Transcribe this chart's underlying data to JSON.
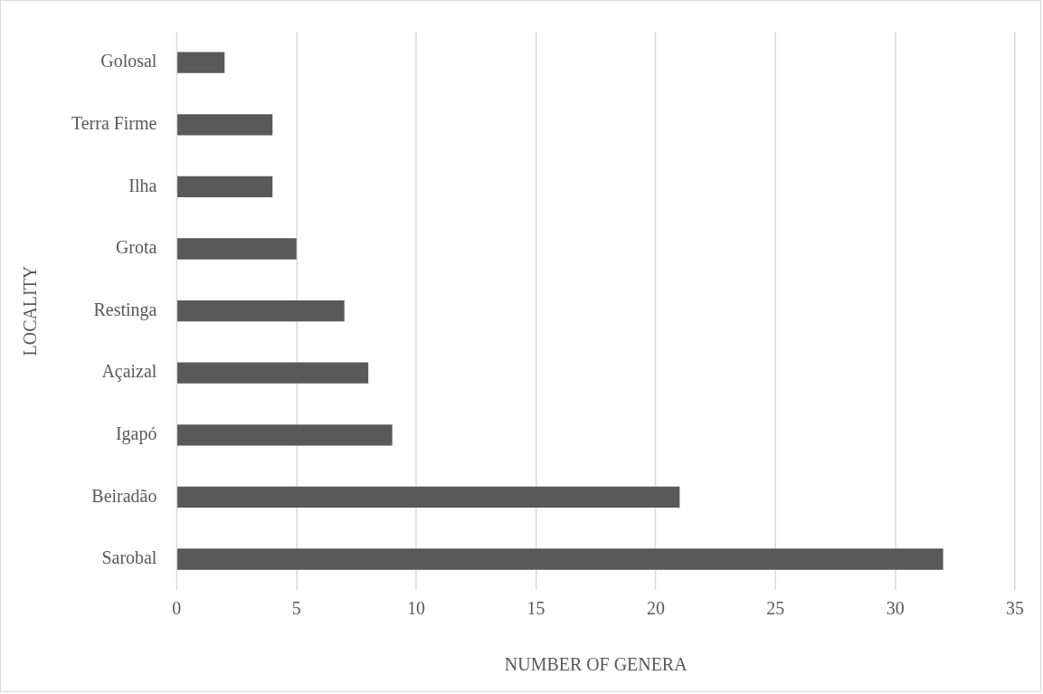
{
  "chart_data": {
    "type": "bar",
    "orientation": "horizontal",
    "xlabel": "NUMBER OF GENERA",
    "ylabel": "LOCALITY",
    "categories": [
      "Golosal",
      "Terra Firme",
      "Ilha",
      "Grota",
      "Restinga",
      "Açaizal",
      "Igapó",
      "Beiradão",
      "Sarobal"
    ],
    "values": [
      2,
      4,
      4,
      5,
      7,
      8,
      9,
      21,
      32
    ],
    "color": "#595959",
    "xlim": [
      0,
      35
    ],
    "xticks": [
      0,
      5,
      10,
      15,
      20,
      25,
      30,
      35
    ],
    "grid": "x",
    "legend": false
  }
}
